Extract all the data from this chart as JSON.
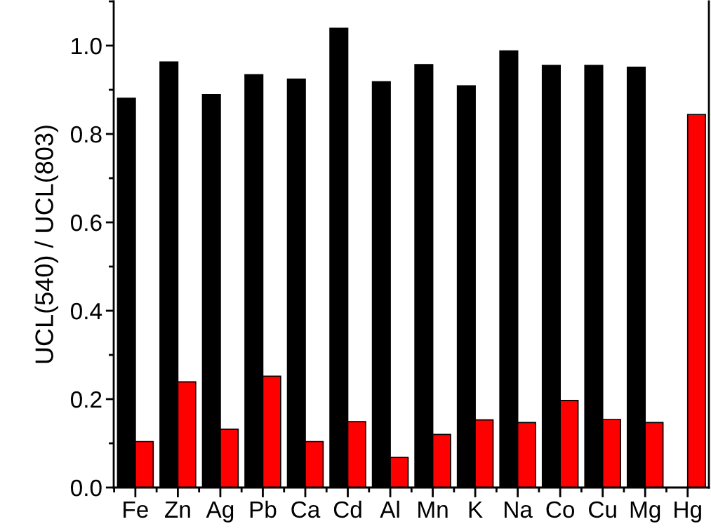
{
  "chart_data": {
    "type": "bar",
    "ylabel": "UCL(540) / UCL(803)",
    "categories": [
      "Fe",
      "Zn",
      "Ag",
      "Pb",
      "Ca",
      "Cd",
      "Al",
      "Mn",
      "K",
      "Na",
      "Co",
      "Cu",
      "Mg",
      "Hg"
    ],
    "series": [
      {
        "color": "#000000",
        "values": [
          0.881,
          0.963,
          0.889,
          0.934,
          0.924,
          1.039,
          0.918,
          0.957,
          0.909,
          0.988,
          0.955,
          0.955,
          0.951,
          null
        ]
      },
      {
        "color": "#ff0000",
        "values": [
          0.104,
          0.239,
          0.132,
          0.252,
          0.104,
          0.149,
          0.068,
          0.12,
          0.153,
          0.147,
          0.197,
          0.154,
          0.147,
          0.844
        ]
      }
    ],
    "ylim": [
      0,
      1.1
    ],
    "yticks": [
      "0.0",
      0.2,
      0.4,
      0.6,
      0.8,
      "1.0"
    ],
    "grid": false,
    "legend": false
  }
}
